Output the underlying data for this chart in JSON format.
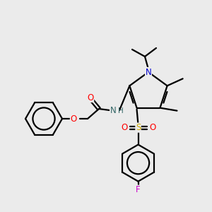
{
  "background_color": "#ebebeb",
  "atom_colors": {
    "C": "#000000",
    "N": "#0000cc",
    "O": "#ff0000",
    "S": "#ccaa00",
    "F": "#cc00cc",
    "H": "#336666"
  },
  "bond_lw": 1.6,
  "font_size": 8.5
}
